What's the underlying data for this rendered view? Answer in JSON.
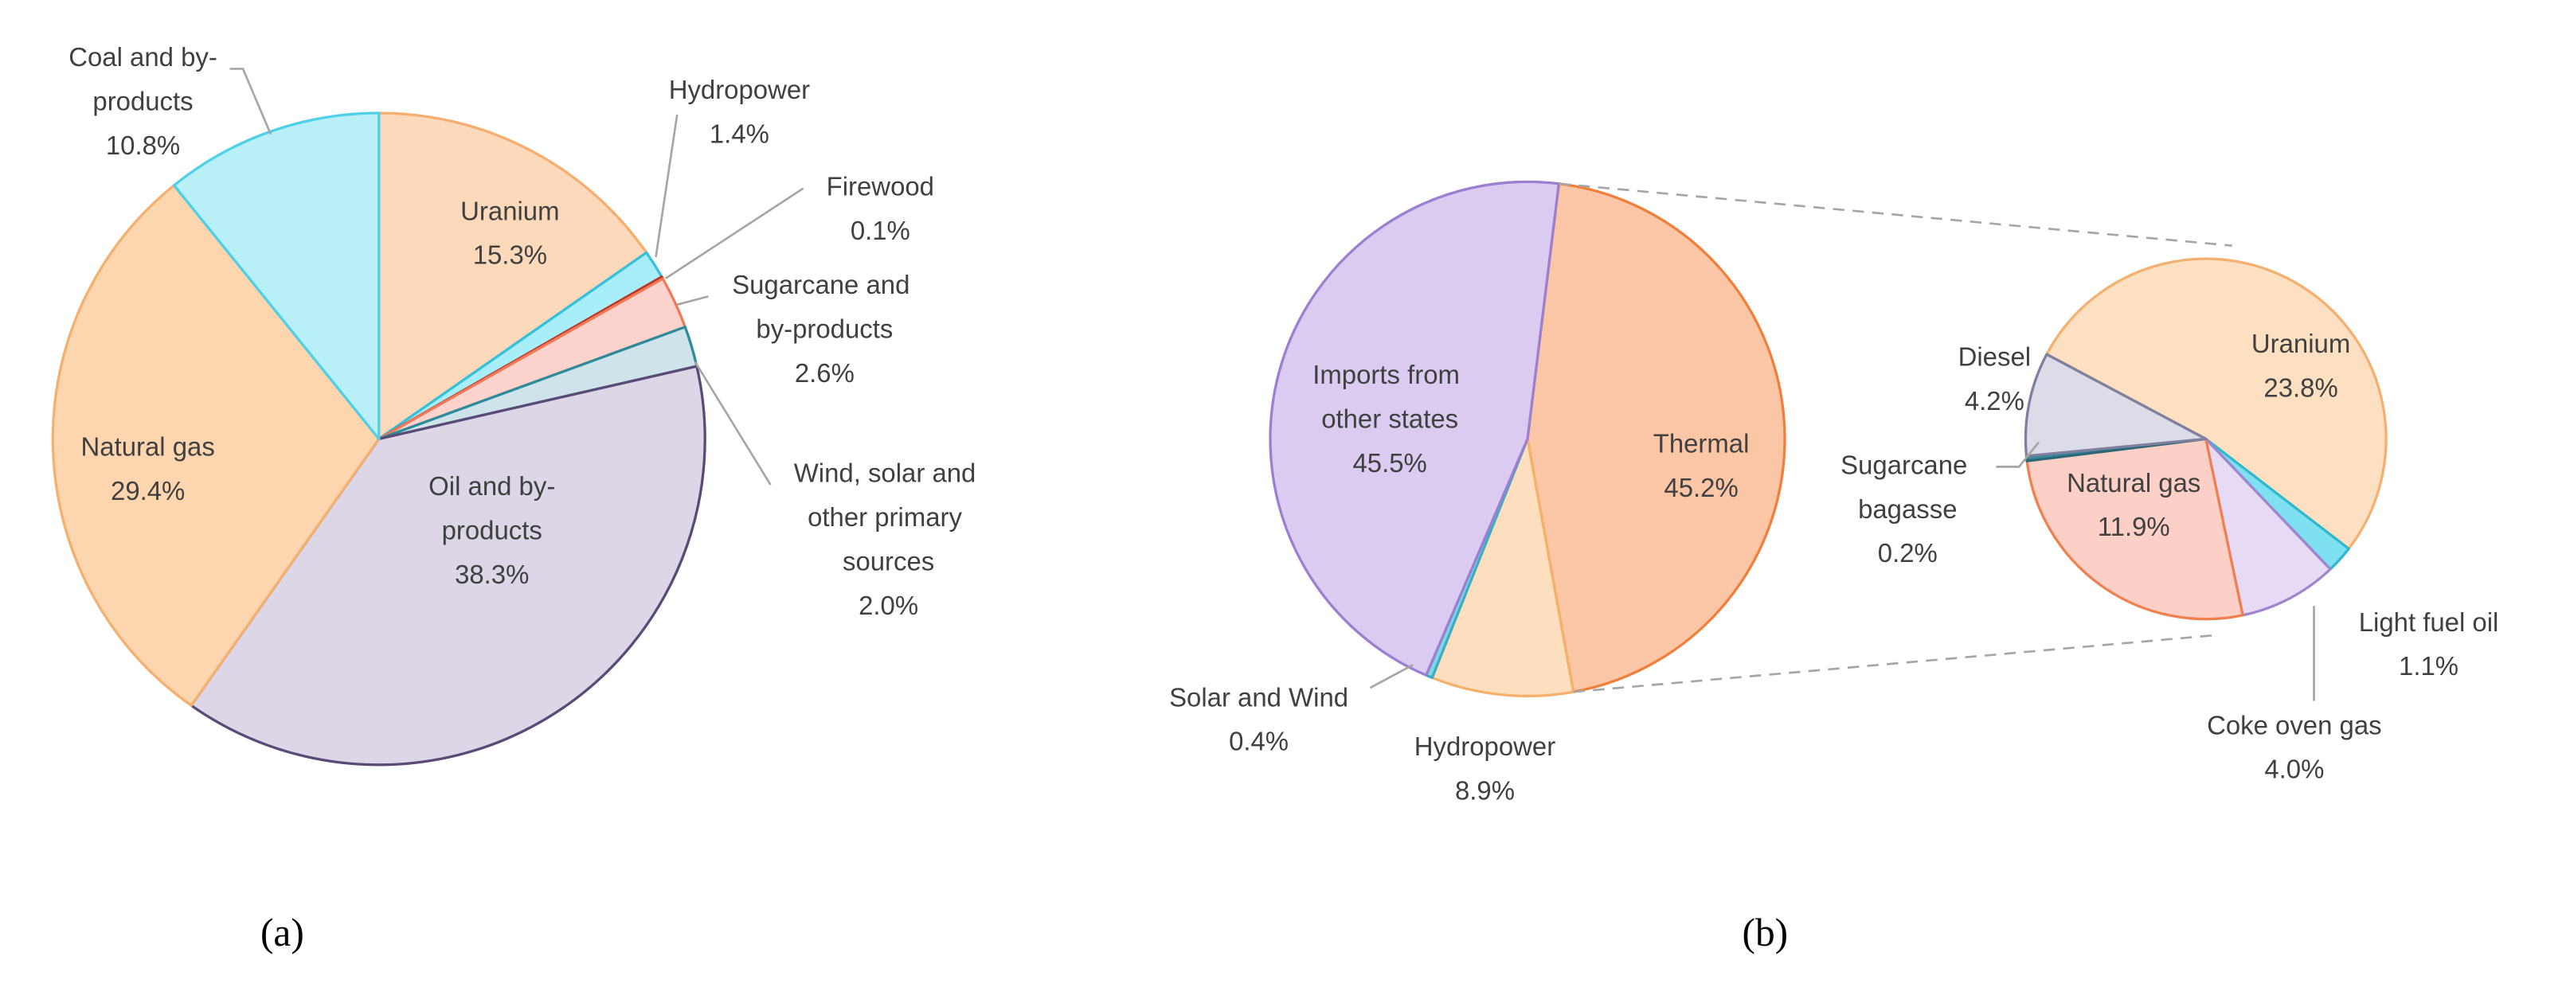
{
  "chart_data": [
    {
      "type": "pie",
      "caption": "(a)",
      "categories": [
        "Uranium",
        "Hydropower",
        "Firewood",
        "Sugarcane and by-products",
        "Wind, solar and other primary sources",
        "Oil and by-products",
        "Natural gas",
        "Coal and by-products"
      ],
      "values": [
        15.3,
        1.4,
        0.1,
        2.6,
        2.0,
        38.3,
        29.4,
        10.8
      ],
      "value_labels": [
        "15.3%",
        "1.4%",
        "0.1%",
        "2.6%",
        "2.0%",
        "38.3%",
        "29.4%",
        "10.8%"
      ],
      "colors": [
        "#fdd9bc",
        "#a8eef8",
        "#e05a3a",
        "#fcd3cc",
        "#cfe4ea",
        "#dcd6e6",
        "#fdd6b0",
        "#b9f0f8"
      ],
      "edge_colors": [
        "#f5ad70",
        "#35c0dc",
        "#c03020",
        "#ee7a5a",
        "#2f8a9a",
        "#5a4a78",
        "#f5b070",
        "#4fd0e8"
      ]
    },
    {
      "type": "pie-of-pie",
      "caption": "(b)",
      "categories": [
        "Thermal",
        "Hydropower",
        "Solar and Wind",
        "Imports from other states"
      ],
      "values": [
        45.2,
        8.9,
        0.4,
        45.5
      ],
      "value_labels": [
        "45.2%",
        "8.9%",
        "0.4%",
        "45.5%"
      ],
      "colors": [
        "#fbc6a6",
        "#fddfc0",
        "#7ed6e6",
        "#dccbf0"
      ],
      "edge_colors": [
        "#f07f3c",
        "#f5b06a",
        "#3aaec6",
        "#9b7fd0"
      ],
      "breakdown": {
        "categories": [
          "Uranium",
          "Light fuel oil",
          "Coke oven gas",
          "Natural gas",
          "Sugarcane bagasse",
          "Diesel"
        ],
        "values": [
          23.8,
          1.1,
          4.0,
          11.9,
          0.2,
          4.2
        ],
        "value_labels": [
          "23.8%",
          "1.1%",
          "4.0%",
          "11.9%",
          "0.2%",
          "4.2%"
        ],
        "colors": [
          "#fde0c2",
          "#7ee0f0",
          "#e6daf5",
          "#fcd0c6",
          "#3a8a9a",
          "#dcdce8"
        ],
        "edge_colors": [
          "#f4b070",
          "#30b8d0",
          "#9f85cc",
          "#f08050",
          "#2a6a78",
          "#7f7fa0"
        ]
      }
    }
  ]
}
